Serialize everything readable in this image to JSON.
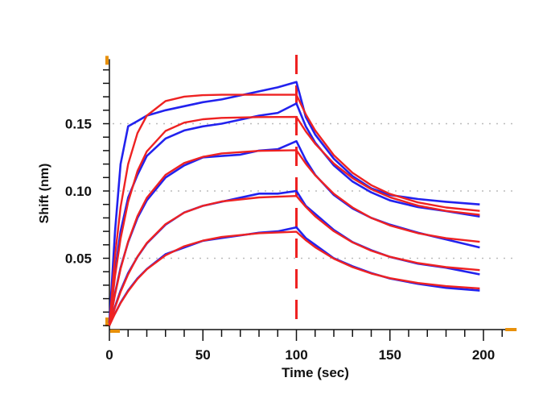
{
  "chart_data": {
    "type": "line",
    "title": "",
    "xlabel": "Time (sec)",
    "ylabel": "Shift (nm)",
    "xlim": [
      0,
      216
    ],
    "ylim": [
      -0.003,
      0.198
    ],
    "x_ticks": [
      0,
      50,
      100,
      150,
      200
    ],
    "x_tick_labels": [
      "0",
      "50",
      "100",
      "150",
      "200"
    ],
    "y_ticks": [
      0.05,
      0.1,
      0.15
    ],
    "y_tick_labels": [
      "0.05",
      "0.10",
      "0.15"
    ],
    "grid": "horizontal dotted at y ticks",
    "legend": "none",
    "marker_line_x": 100,
    "colors": {
      "data": "#2222ee",
      "fit": "#ee2222",
      "marker_line": "#ee2222",
      "range_marker": "#e8900a",
      "grid": "#bbbbbb"
    },
    "data_x": [
      0,
      3,
      6,
      10,
      15,
      20,
      30,
      40,
      50,
      60,
      70,
      80,
      90,
      100,
      105,
      110,
      120,
      130,
      140,
      150,
      165,
      180,
      198
    ],
    "fit_x": [
      0,
      3,
      6,
      10,
      15,
      20,
      30,
      40,
      50,
      60,
      80,
      100,
      105,
      110,
      120,
      130,
      140,
      150,
      165,
      180,
      198
    ],
    "data_series": [
      [
        0.002,
        0.07,
        0.12,
        0.148,
        0.152,
        0.156,
        0.16,
        0.163,
        0.166,
        0.168,
        0.171,
        0.174,
        0.177,
        0.181,
        0.155,
        0.142,
        0.124,
        0.111,
        0.102,
        0.097,
        0.094,
        0.092,
        0.09
      ],
      [
        0.002,
        0.04,
        0.07,
        0.095,
        0.112,
        0.126,
        0.139,
        0.145,
        0.148,
        0.15,
        0.153,
        0.156,
        0.158,
        0.165,
        0.148,
        0.136,
        0.119,
        0.107,
        0.099,
        0.093,
        0.088,
        0.085,
        0.081
      ],
      [
        0.002,
        0.024,
        0.043,
        0.062,
        0.08,
        0.093,
        0.11,
        0.119,
        0.125,
        0.126,
        0.127,
        0.13,
        0.131,
        0.137,
        0.123,
        0.112,
        0.097,
        0.087,
        0.08,
        0.075,
        0.069,
        0.064,
        0.058
      ],
      [
        0.002,
        0.014,
        0.026,
        0.039,
        0.051,
        0.061,
        0.075,
        0.084,
        0.089,
        0.092,
        0.095,
        0.098,
        0.098,
        0.1,
        0.089,
        0.083,
        0.071,
        0.062,
        0.056,
        0.051,
        0.046,
        0.043,
        0.038
      ],
      [
        0.002,
        0.009,
        0.017,
        0.026,
        0.035,
        0.042,
        0.053,
        0.058,
        0.063,
        0.065,
        0.067,
        0.069,
        0.07,
        0.073,
        0.065,
        0.06,
        0.05,
        0.044,
        0.039,
        0.035,
        0.031,
        0.028,
        0.026
      ]
    ],
    "fit_series": [
      [
        0,
        0.0518,
        0.088,
        0.12,
        0.143,
        0.156,
        0.1668,
        0.1701,
        0.1712,
        0.1715,
        0.1715,
        0.1715,
        0.157,
        0.145,
        0.1266,
        0.1135,
        0.1043,
        0.0978,
        0.0915,
        0.0877,
        0.0852
      ],
      [
        0,
        0.0367,
        0.0646,
        0.0919,
        0.1148,
        0.1294,
        0.1446,
        0.1508,
        0.1533,
        0.1543,
        0.1549,
        0.155,
        0.1443,
        0.1351,
        0.1204,
        0.1095,
        0.1013,
        0.0953,
        0.0891,
        0.0852,
        0.0823
      ],
      [
        0,
        0.0231,
        0.0421,
        0.0624,
        0.0813,
        0.0949,
        0.112,
        0.1208,
        0.1254,
        0.1279,
        0.1298,
        0.1303,
        0.1203,
        0.1117,
        0.0979,
        0.0877,
        0.08,
        0.0744,
        0.0686,
        0.0649,
        0.0622
      ],
      [
        0,
        0.0135,
        0.0251,
        0.0381,
        0.0512,
        0.0613,
        0.0754,
        0.0839,
        0.089,
        0.0922,
        0.0952,
        0.0963,
        0.0882,
        0.0812,
        0.0701,
        0.0618,
        0.0556,
        0.0511,
        0.0464,
        0.0434,
        0.0412
      ],
      [
        0,
        0.0089,
        0.0167,
        0.0255,
        0.0346,
        0.0418,
        0.0522,
        0.0589,
        0.0631,
        0.0658,
        0.0686,
        0.0697,
        0.0635,
        0.0582,
        0.0497,
        0.0434,
        0.0387,
        0.0352,
        0.0316,
        0.0293,
        0.0276
      ]
    ]
  }
}
